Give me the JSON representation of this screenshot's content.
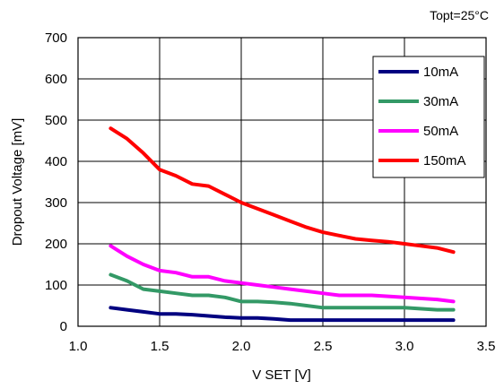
{
  "condition_label": "Topt=25°C",
  "chart_data": {
    "type": "line",
    "title": "",
    "xlabel": "V SET [V]",
    "ylabel": "Dropout Voltage [mV]",
    "xlim": [
      1.0,
      3.5
    ],
    "ylim": [
      0,
      700
    ],
    "xticks": [
      "1.0",
      "1.5",
      "2.0",
      "2.5",
      "3.0",
      "3.5"
    ],
    "yticks": [
      "0",
      "100",
      "200",
      "300",
      "400",
      "500",
      "600",
      "700"
    ],
    "grid": true,
    "legend_position": "top-right",
    "series": [
      {
        "name": "10mA",
        "color": "#000080",
        "points": [
          [
            1.2,
            45
          ],
          [
            1.3,
            40
          ],
          [
            1.4,
            35
          ],
          [
            1.5,
            30
          ],
          [
            1.6,
            30
          ],
          [
            1.7,
            28
          ],
          [
            1.8,
            25
          ],
          [
            1.9,
            22
          ],
          [
            2.0,
            20
          ],
          [
            2.1,
            20
          ],
          [
            2.2,
            18
          ],
          [
            2.3,
            15
          ],
          [
            2.5,
            15
          ],
          [
            2.7,
            15
          ],
          [
            2.9,
            15
          ],
          [
            3.1,
            15
          ],
          [
            3.3,
            15
          ]
        ]
      },
      {
        "name": "30mA",
        "color": "#339966",
        "points": [
          [
            1.2,
            125
          ],
          [
            1.3,
            110
          ],
          [
            1.4,
            90
          ],
          [
            1.5,
            85
          ],
          [
            1.6,
            80
          ],
          [
            1.7,
            75
          ],
          [
            1.8,
            75
          ],
          [
            1.9,
            70
          ],
          [
            2.0,
            60
          ],
          [
            2.1,
            60
          ],
          [
            2.2,
            58
          ],
          [
            2.3,
            55
          ],
          [
            2.4,
            50
          ],
          [
            2.5,
            45
          ],
          [
            2.7,
            45
          ],
          [
            2.9,
            45
          ],
          [
            3.0,
            45
          ],
          [
            3.2,
            40
          ],
          [
            3.3,
            40
          ]
        ]
      },
      {
        "name": "50mA",
        "color": "#ff00ff",
        "points": [
          [
            1.2,
            195
          ],
          [
            1.3,
            170
          ],
          [
            1.4,
            150
          ],
          [
            1.5,
            135
          ],
          [
            1.6,
            130
          ],
          [
            1.7,
            120
          ],
          [
            1.8,
            120
          ],
          [
            1.9,
            110
          ],
          [
            2.0,
            105
          ],
          [
            2.1,
            100
          ],
          [
            2.2,
            95
          ],
          [
            2.3,
            90
          ],
          [
            2.4,
            85
          ],
          [
            2.5,
            80
          ],
          [
            2.6,
            75
          ],
          [
            2.8,
            75
          ],
          [
            3.0,
            70
          ],
          [
            3.2,
            65
          ],
          [
            3.3,
            60
          ]
        ]
      },
      {
        "name": "150mA",
        "color": "#ff0000",
        "points": [
          [
            1.2,
            480
          ],
          [
            1.3,
            455
          ],
          [
            1.4,
            420
          ],
          [
            1.5,
            380
          ],
          [
            1.6,
            365
          ],
          [
            1.7,
            345
          ],
          [
            1.8,
            340
          ],
          [
            1.9,
            320
          ],
          [
            2.0,
            300
          ],
          [
            2.1,
            285
          ],
          [
            2.2,
            270
          ],
          [
            2.3,
            255
          ],
          [
            2.4,
            240
          ],
          [
            2.5,
            228
          ],
          [
            2.6,
            220
          ],
          [
            2.7,
            212
          ],
          [
            2.8,
            208
          ],
          [
            2.9,
            205
          ],
          [
            3.0,
            200
          ],
          [
            3.1,
            195
          ],
          [
            3.2,
            190
          ],
          [
            3.3,
            180
          ]
        ]
      }
    ]
  }
}
